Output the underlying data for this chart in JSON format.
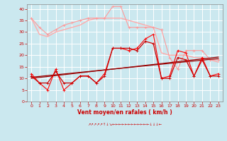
{
  "background_color": "#cbe8ef",
  "grid_color": "#ffffff",
  "xlabel": "Vent moyen/en rafales ( km/h )",
  "xlabel_color": "#cc0000",
  "tick_color": "#cc0000",
  "ylim": [
    0,
    42
  ],
  "xlim": [
    -0.5,
    23.5
  ],
  "yticks": [
    0,
    5,
    10,
    15,
    20,
    25,
    30,
    35,
    40
  ],
  "xticks": [
    0,
    1,
    2,
    3,
    4,
    5,
    6,
    7,
    8,
    9,
    10,
    11,
    12,
    13,
    14,
    15,
    16,
    17,
    18,
    19,
    20,
    21,
    22,
    23
  ],
  "hours": [
    0,
    1,
    2,
    3,
    4,
    5,
    6,
    7,
    8,
    9,
    10,
    11,
    12,
    13,
    14,
    15,
    16,
    17,
    18,
    19,
    20,
    21,
    22,
    23
  ],
  "wind_avg": [
    11,
    8,
    8,
    13,
    8,
    8,
    11,
    11,
    8,
    11,
    23,
    23,
    23,
    22,
    26,
    25,
    10,
    10,
    19,
    18,
    11,
    18,
    11,
    11
  ],
  "wind_gust": [
    12,
    8,
    5,
    14,
    5,
    8,
    11,
    11,
    8,
    12,
    23,
    23,
    22,
    23,
    27,
    29,
    10,
    11,
    22,
    21,
    11,
    19,
    11,
    12
  ],
  "wind_max_daily": [
    36,
    29,
    28,
    30,
    31,
    32,
    33,
    35,
    36,
    36,
    36,
    36,
    35,
    34,
    33,
    32,
    21,
    20,
    20,
    20,
    19,
    19,
    18,
    17
  ],
  "wind_trend1": [
    10.0,
    10.4,
    10.8,
    11.2,
    11.6,
    12.0,
    12.4,
    12.8,
    13.2,
    13.6,
    14.0,
    14.4,
    14.8,
    15.2,
    15.6,
    16.0,
    16.4,
    16.8,
    17.2,
    17.6,
    18.0,
    18.4,
    18.8,
    19.2
  ],
  "wind_trend2": [
    10.5,
    10.85,
    11.2,
    11.55,
    11.9,
    12.25,
    12.6,
    12.95,
    13.3,
    13.65,
    14.0,
    14.35,
    14.7,
    15.05,
    15.4,
    15.75,
    16.1,
    16.45,
    16.8,
    17.15,
    17.5,
    17.85,
    18.2,
    18.55
  ],
  "peak_gust": [
    36,
    32,
    29,
    31,
    33,
    34,
    35,
    36,
    36,
    36,
    41,
    41,
    32,
    32,
    32,
    32,
    31,
    19,
    14,
    22,
    22,
    22,
    18,
    18
  ],
  "color_avg": "#cc0000",
  "color_gust": "#ff0000",
  "color_max": "#ffaaaa",
  "color_trend": "#990000",
  "color_peak": "#ff9999",
  "arrow_symbols": "↗↗↗↗↗↑↓↘←←←←←←←←←←←←↓↓↓←"
}
